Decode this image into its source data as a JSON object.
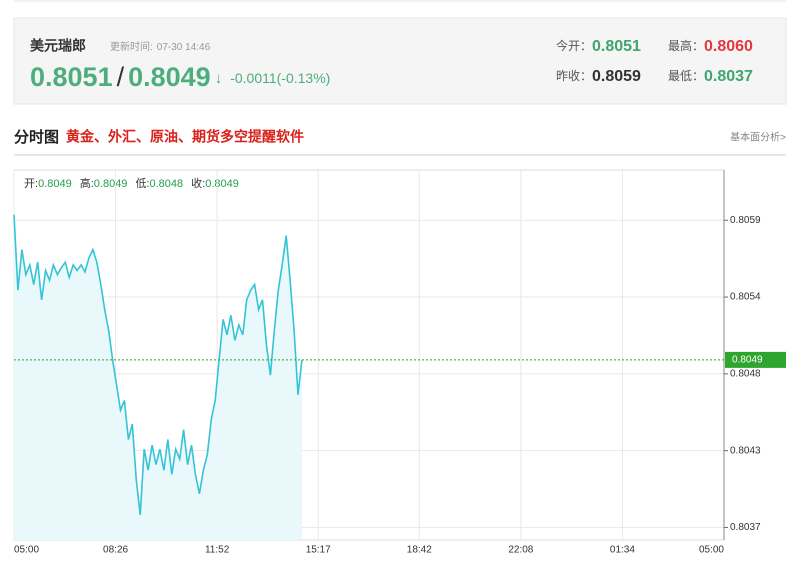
{
  "header": {
    "name": "美元瑞郎",
    "update_label": "更新时间:",
    "update_time": "07-30 14:46",
    "bid": "0.8051",
    "separator": "/",
    "ask": "0.8049",
    "arrow": "↓",
    "change": "-0.0011(-0.13%)",
    "stats": [
      {
        "label": "今开：",
        "value": "0.8051",
        "color": "#3fa56f"
      },
      {
        "label": "最高：",
        "value": "0.8060",
        "color": "#e0393e"
      },
      {
        "label": "昨收：",
        "value": "0.8059",
        "color": "#333333"
      },
      {
        "label": "最低：",
        "value": "0.8037",
        "color": "#3fa56f"
      }
    ]
  },
  "section": {
    "title": "分时图",
    "promo": "黄金、外汇、原油、期货多空提醒软件",
    "link": "基本面分析>"
  },
  "chart_data": {
    "type": "line",
    "ohlc": [
      {
        "label": "开:",
        "value": 0.8049
      },
      {
        "label": "高:",
        "value": 0.8049
      },
      {
        "label": "低:",
        "value": 0.8048
      },
      {
        "label": "收:",
        "value": 0.8049
      }
    ],
    "x": [
      0,
      8,
      16,
      24,
      32,
      40,
      48,
      56,
      64,
      72,
      80,
      88,
      96,
      104,
      112,
      120,
      128,
      136,
      144,
      152,
      160,
      168,
      176,
      184,
      192,
      200,
      208,
      216,
      224,
      232,
      240,
      248,
      256,
      264,
      272,
      280,
      288,
      296,
      304,
      312,
      320,
      328,
      336,
      344,
      352,
      360,
      368,
      376,
      384,
      392,
      400,
      408,
      416,
      424,
      432,
      440,
      448,
      456,
      464,
      472,
      480,
      488,
      496,
      504,
      512,
      520,
      528,
      536,
      544,
      552,
      560,
      568,
      576,
      584
    ],
    "values": [
      0.80594,
      0.8054,
      0.80569,
      0.80551,
      0.80558,
      0.80544,
      0.8056,
      0.80533,
      0.80554,
      0.80547,
      0.80558,
      0.80551,
      0.80556,
      0.8056,
      0.80549,
      0.80558,
      0.80554,
      0.80558,
      0.80553,
      0.80563,
      0.80569,
      0.8056,
      0.80544,
      0.80526,
      0.80511,
      0.8049,
      0.80472,
      0.80454,
      0.80461,
      0.80433,
      0.80444,
      0.80404,
      0.80379,
      0.80426,
      0.80411,
      0.80429,
      0.80415,
      0.80426,
      0.80411,
      0.80433,
      0.80408,
      0.80426,
      0.80419,
      0.8044,
      0.80415,
      0.80429,
      0.80408,
      0.80394,
      0.80411,
      0.80422,
      0.80447,
      0.80461,
      0.8049,
      0.80519,
      0.80508,
      0.80522,
      0.80504,
      0.80515,
      0.80508,
      0.80533,
      0.8054,
      0.80544,
      0.80526,
      0.80533,
      0.80501,
      0.80479,
      0.80511,
      0.8054,
      0.80558,
      0.80579,
      0.80547,
      0.80511,
      0.80465,
      0.8049
    ],
    "color": "#35c3d6",
    "fill": "#e9f8fb",
    "last_price": 0.8049,
    "last_color": "#2ea52e",
    "xlim": [
      0,
      1440
    ],
    "xticks": [
      {
        "value": 0,
        "label": "05:00"
      },
      {
        "value": 206,
        "label": "08:26"
      },
      {
        "value": 412,
        "label": "11:52"
      },
      {
        "value": 617,
        "label": "15:17"
      },
      {
        "value": 822,
        "label": "18:42"
      },
      {
        "value": 1028,
        "label": "22:08"
      },
      {
        "value": 1234,
        "label": "01:34"
      },
      {
        "value": 1440,
        "label": "05:00"
      }
    ],
    "ylim": [
      0.80361,
      0.80626
    ],
    "yticks": [
      0.8059,
      {
        "value": 0.80535,
        "label": "0.8054"
      },
      0.8048,
      {
        "value": 0.80425,
        "label": "0.8043"
      },
      0.8037
    ],
    "grid": true
  }
}
